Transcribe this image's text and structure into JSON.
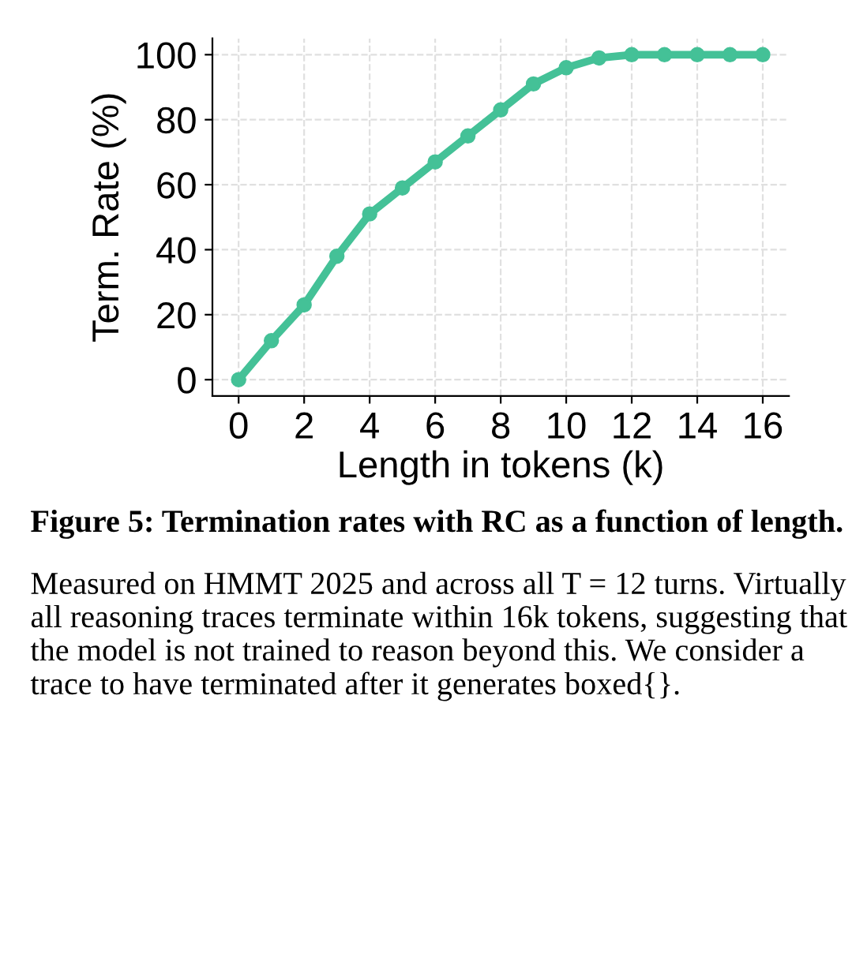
{
  "chart_data": {
    "type": "line",
    "xlabel": "Length in tokens (k)",
    "ylabel": "Term. Rate (%)",
    "x": [
      0,
      1,
      2,
      3,
      4,
      5,
      6,
      7,
      8,
      9,
      10,
      11,
      12,
      13,
      14,
      15,
      16
    ],
    "series": [
      {
        "color": "#44c197",
        "values": [
          0,
          12,
          23,
          38,
          51,
          59,
          67,
          75,
          83,
          91,
          96,
          99,
          100,
          100,
          100,
          100,
          100
        ]
      }
    ],
    "xlim": [
      -0.8,
      16.8
    ],
    "xticks": [
      0,
      2,
      4,
      6,
      8,
      10,
      12,
      14,
      16
    ],
    "ylim": [
      -5,
      105
    ],
    "yticks": [
      0,
      20,
      40,
      60,
      80,
      100
    ],
    "grid": true,
    "marker": "circle",
    "line_style": "solid",
    "annotations": [
      "Figure 5: Termination rates with RC as a function of length.",
      "Measured on HMMT 2025 and across all T = 12 turns. Virtually all reasoning traces terminate within 16k tokens, suggesting that the model is not trained to reason beyond this. We consider a trace to have terminated after it generates boxed{}."
    ]
  }
}
